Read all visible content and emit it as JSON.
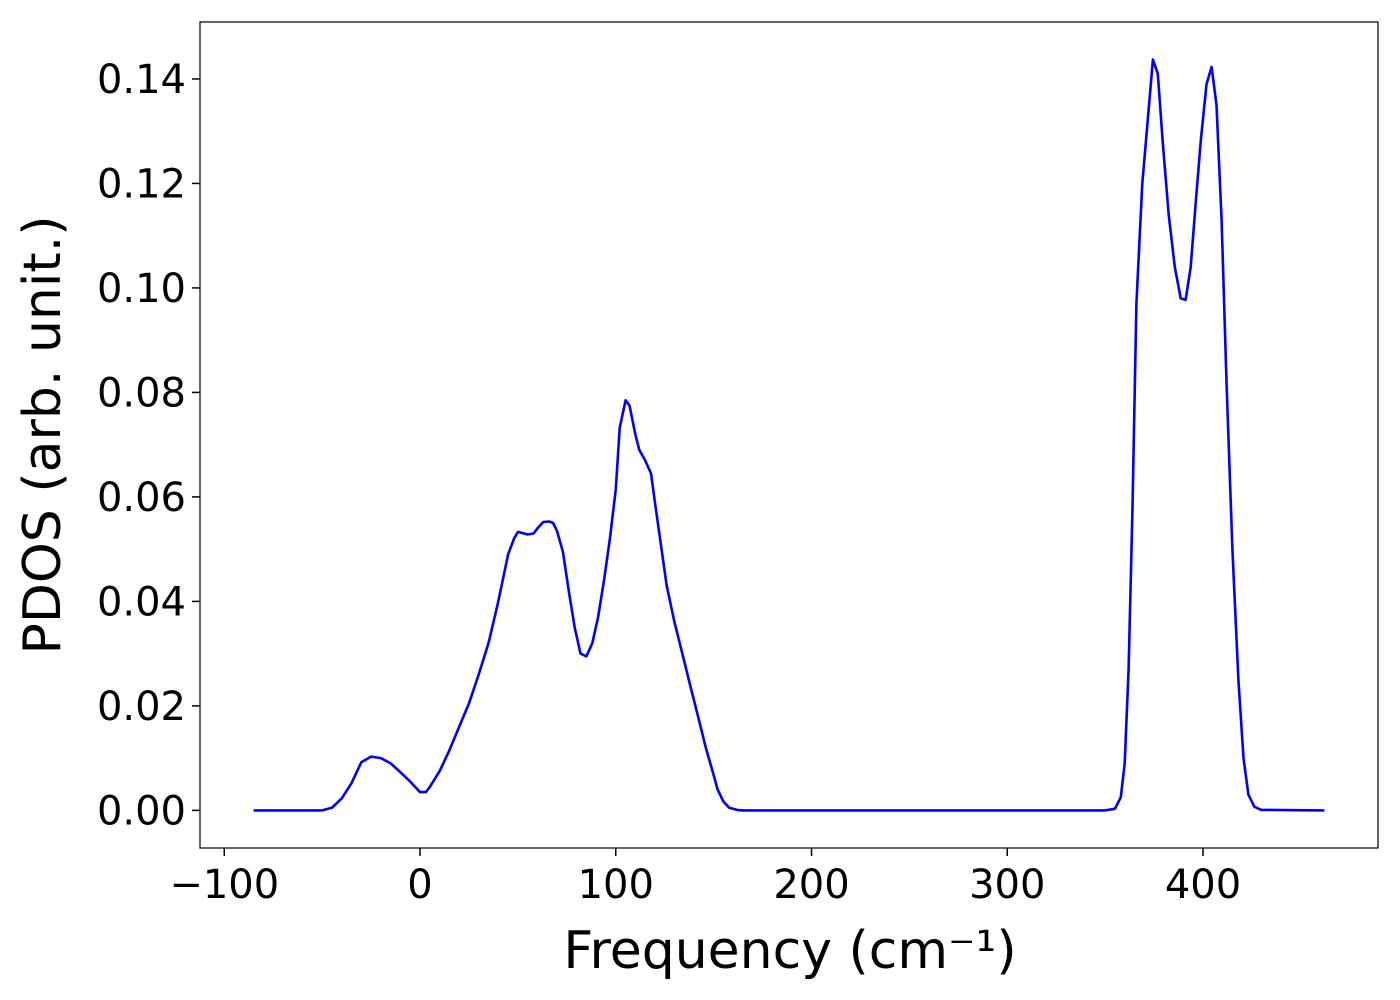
{
  "chart_data": {
    "type": "line",
    "x_label": "Frequency (cm⁻¹)",
    "y_label": "PDOS (arb. unit.)",
    "color": "#0000ff",
    "xlim": [
      -112.4,
      489.4
    ],
    "ylim": [
      -0.0072,
      0.1509
    ],
    "xticks": [
      {
        "value": -100,
        "label": "−100"
      },
      0,
      100,
      200,
      300,
      400
    ],
    "yticks": [
      {
        "value": 0,
        "label": "0.00"
      },
      0.02,
      0.04,
      0.06,
      0.08,
      {
        "value": 0.1,
        "label": "0.10"
      },
      0.12,
      0.14
    ],
    "x": [
      -85,
      -50,
      -45,
      -40,
      -35,
      -30,
      -25,
      -20,
      -15,
      -10,
      -5,
      0,
      3,
      5,
      10,
      15,
      20,
      25,
      30,
      35,
      40,
      45,
      48,
      50,
      55,
      58,
      60,
      63,
      66,
      68,
      70,
      73,
      76,
      79,
      82,
      85,
      88,
      91,
      94,
      97,
      100,
      102,
      105,
      107,
      110,
      112,
      115,
      118,
      120,
      123,
      126,
      130,
      134,
      138,
      142,
      146,
      150,
      152,
      155,
      158,
      162,
      165,
      350,
      355,
      358,
      360,
      362,
      364,
      366,
      369,
      371.3,
      374.4,
      376.9,
      379.4,
      382.5,
      385.6,
      388.6,
      391.1,
      393.7,
      396.2,
      398.8,
      401.8,
      404.4,
      406.9,
      409.5,
      412,
      415,
      418.1,
      420.7,
      423.2,
      426.2,
      429.8,
      462
    ],
    "values": [
      0,
      0,
      0.0005,
      0.0023,
      0.0052,
      0.0092,
      0.0103,
      0.01,
      0.009,
      0.0073,
      0.0055,
      0.0035,
      0.0035,
      0.0045,
      0.0075,
      0.0115,
      0.016,
      0.0205,
      0.026,
      0.032,
      0.04,
      0.049,
      0.052,
      0.0533,
      0.0528,
      0.053,
      0.054,
      0.0552,
      0.0553,
      0.055,
      0.0535,
      0.0495,
      0.042,
      0.035,
      0.03,
      0.0295,
      0.032,
      0.037,
      0.044,
      0.052,
      0.0615,
      0.0732,
      0.0785,
      0.0775,
      0.072,
      0.069,
      0.067,
      0.0645,
      0.059,
      0.051,
      0.043,
      0.036,
      0.03,
      0.024,
      0.018,
      0.012,
      0.0068,
      0.004,
      0.0017,
      0.0005,
      0.0001,
      0,
      0,
      0.0003,
      0.0025,
      0.009,
      0.027,
      0.058,
      0.097,
      0.12,
      0.13,
      0.1437,
      0.141,
      0.128,
      0.114,
      0.104,
      0.098,
      0.0977,
      0.104,
      0.116,
      0.128,
      0.139,
      0.1423,
      0.135,
      0.113,
      0.082,
      0.05,
      0.025,
      0.01,
      0.003,
      0.0007,
      0.0001,
      0
    ]
  }
}
